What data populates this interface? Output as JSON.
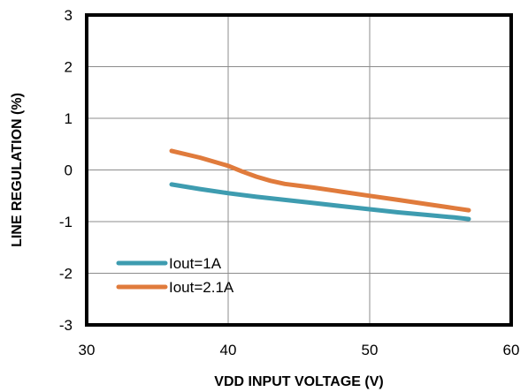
{
  "chart_data": {
    "type": "line",
    "title": "",
    "xlabel": "VDD INPUT VOLTAGE (V)",
    "ylabel": "LINE REGULATION  (%)",
    "xlim": [
      30,
      60
    ],
    "ylim": [
      -3,
      3
    ],
    "xticks": [
      30,
      40,
      50,
      60
    ],
    "yticks": [
      3,
      2,
      1,
      0,
      -1,
      -2,
      -3
    ],
    "grid": true,
    "legend": "bottom-left",
    "series": [
      {
        "name": "Iout=1A",
        "color": "#3E9CB0",
        "x": [
          36,
          38,
          40,
          42,
          44,
          46,
          48,
          50,
          52,
          54,
          56,
          57
        ],
        "y": [
          -0.28,
          -0.37,
          -0.45,
          -0.52,
          -0.58,
          -0.64,
          -0.7,
          -0.76,
          -0.82,
          -0.87,
          -0.92,
          -0.95
        ]
      },
      {
        "name": "Iout=2.1A",
        "color": "#E07B3C",
        "x": [
          36,
          38,
          40,
          41,
          42,
          43,
          44,
          46,
          48,
          50,
          52,
          54,
          56,
          57
        ],
        "y": [
          0.37,
          0.24,
          0.08,
          -0.03,
          -0.13,
          -0.21,
          -0.27,
          -0.34,
          -0.42,
          -0.5,
          -0.58,
          -0.66,
          -0.74,
          -0.78
        ]
      }
    ]
  }
}
